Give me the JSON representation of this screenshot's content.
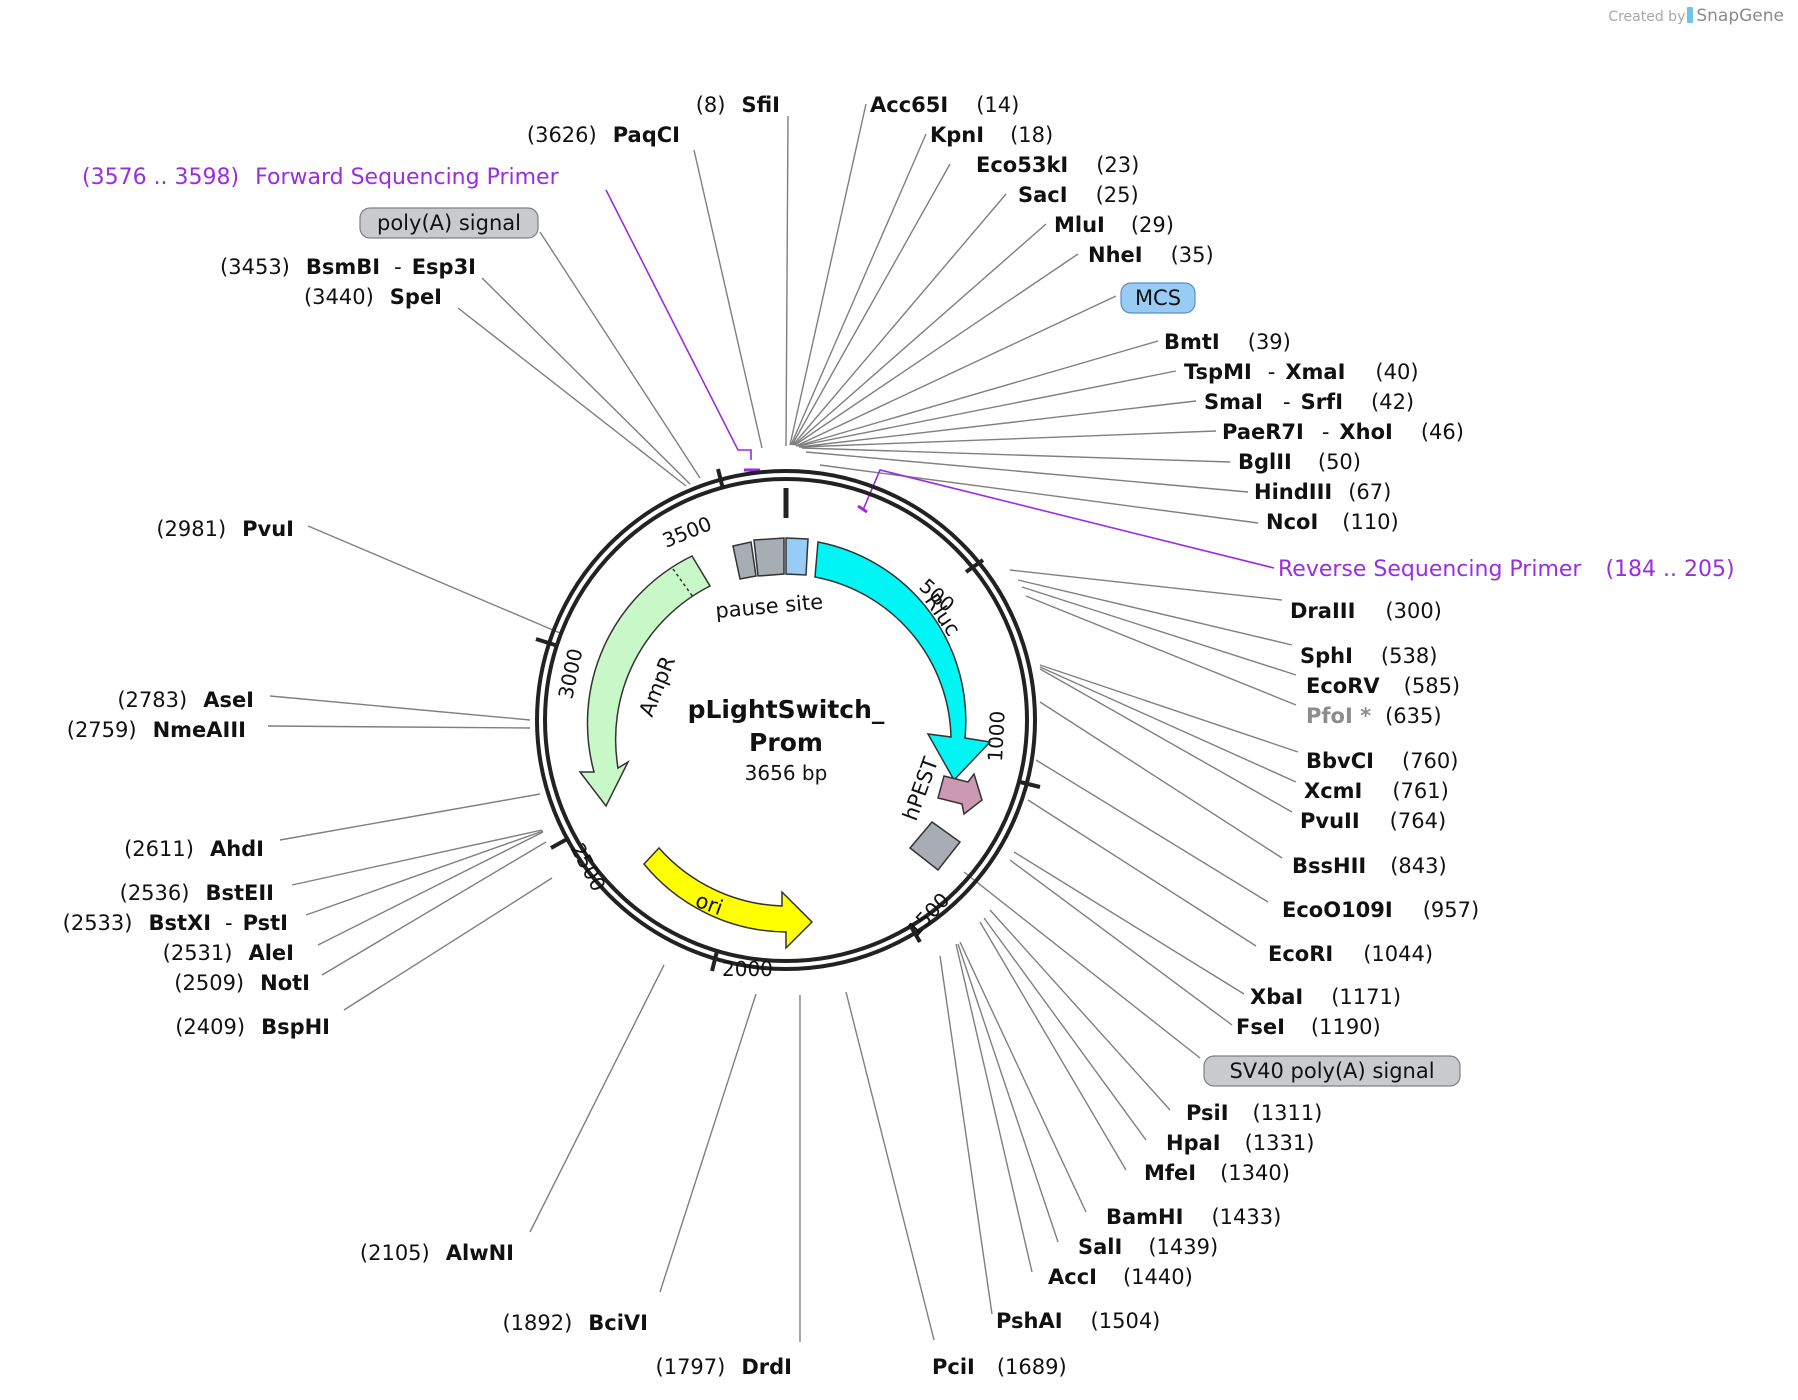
{
  "credit": {
    "prefix": "Created by",
    "brand": "SnapGene"
  },
  "plasmid": {
    "name_line1": "pLightSwitch_",
    "name_line2": "Prom",
    "size": "3656 bp"
  },
  "ticks": [
    "500",
    "1000",
    "1500",
    "2000",
    "2500",
    "3000",
    "3500"
  ],
  "features": {
    "rluc": "Rluc",
    "hpest": "hPEST",
    "ampr": "AmpR",
    "ori": "ori",
    "pause": "pause site"
  },
  "boxed_labels": {
    "polya": "poly(A) signal",
    "mcs": "MCS",
    "sv40": "SV40 poly(A) signal"
  },
  "primers": {
    "forward": {
      "range": "(3576 .. 3598)",
      "name": "Forward Sequencing Primer"
    },
    "reverse": {
      "range": "(184 .. 205)",
      "name": "Reverse Sequencing Primer"
    }
  },
  "sites_right": [
    {
      "name": "Acc65I",
      "pos": "(14)"
    },
    {
      "name": "KpnI",
      "pos": "(18)"
    },
    {
      "name": "Eco53kI",
      "pos": "(23)"
    },
    {
      "name": "SacI",
      "pos": "(25)"
    },
    {
      "name": "MluI",
      "pos": "(29)"
    },
    {
      "name": "NheI",
      "pos": "(35)"
    },
    {
      "name": "BmtI",
      "pos": "(39)"
    },
    {
      "name": "TspMI",
      "name2": "XmaI",
      "pos": "(40)"
    },
    {
      "name": "SmaI",
      "name2": "SrfI",
      "pos": "(42)"
    },
    {
      "name": "PaeR7I",
      "name2": "XhoI",
      "pos": "(46)"
    },
    {
      "name": "BglII",
      "pos": "(50)"
    },
    {
      "name": "HindIII",
      "pos": "(67)"
    },
    {
      "name": "NcoI",
      "pos": "(110)"
    },
    {
      "name": "DraIII",
      "pos": "(300)"
    },
    {
      "name": "SphI",
      "pos": "(538)"
    },
    {
      "name": "EcoRV",
      "pos": "(585)"
    },
    {
      "name": "PfoI *",
      "pos": "(635)"
    },
    {
      "name": "BbvCI",
      "pos": "(760)"
    },
    {
      "name": "XcmI",
      "pos": "(761)"
    },
    {
      "name": "PvuII",
      "pos": "(764)"
    },
    {
      "name": "BssHII",
      "pos": "(843)"
    },
    {
      "name": "EcoO109I",
      "pos": "(957)"
    },
    {
      "name": "EcoRI",
      "pos": "(1044)"
    },
    {
      "name": "XbaI",
      "pos": "(1171)"
    },
    {
      "name": "FseI",
      "pos": "(1190)"
    },
    {
      "name": "PsiI",
      "pos": "(1311)"
    },
    {
      "name": "HpaI",
      "pos": "(1331)"
    },
    {
      "name": "MfeI",
      "pos": "(1340)"
    },
    {
      "name": "BamHI",
      "pos": "(1433)"
    },
    {
      "name": "SalI",
      "pos": "(1439)"
    },
    {
      "name": "AccI",
      "pos": "(1440)"
    },
    {
      "name": "PshAI",
      "pos": "(1504)"
    },
    {
      "name": "PciI",
      "pos": "(1689)"
    }
  ],
  "sites_left": [
    {
      "name": "SfiI",
      "pos": "(8)"
    },
    {
      "name": "PaqCI",
      "pos": "(3626)"
    },
    {
      "name": "BsmBI",
      "name2": "Esp3I",
      "pos": "(3453)"
    },
    {
      "name": "SpeI",
      "pos": "(3440)"
    },
    {
      "name": "PvuI",
      "pos": "(2981)"
    },
    {
      "name": "AseI",
      "pos": "(2783)"
    },
    {
      "name": "NmeAIII",
      "pos": "(2759)"
    },
    {
      "name": "AhdI",
      "pos": "(2611)"
    },
    {
      "name": "BstEII",
      "pos": "(2536)"
    },
    {
      "name": "BstXI",
      "name2": "PstI",
      "pos": "(2533)"
    },
    {
      "name": "AleI",
      "pos": "(2531)"
    },
    {
      "name": "NotI",
      "pos": "(2509)"
    },
    {
      "name": "BspHI",
      "pos": "(2409)"
    },
    {
      "name": "AlwNI",
      "pos": "(2105)"
    },
    {
      "name": "BciVI",
      "pos": "(1892)"
    },
    {
      "name": "DrdI",
      "pos": "(1797)"
    }
  ],
  "colors": {
    "rluc": "#00f5f5",
    "ampr": "#c8f7c8",
    "ori": "#ffff00",
    "hpest": "#cc99b2",
    "gray_feature": "#a8adb3",
    "mcs": "#99ccf5",
    "primer": "#9a2de0",
    "pfoi": "#8c8c8c",
    "leader": "#7f7f7f"
  }
}
